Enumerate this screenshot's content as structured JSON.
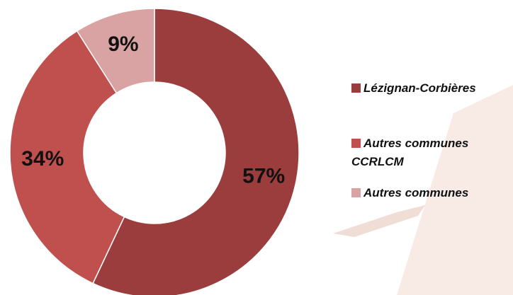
{
  "chart_data": {
    "type": "donut",
    "categories": [
      "Lézignan-Corbières",
      "Autres communes CCRLCM",
      "Autres communes"
    ],
    "values": [
      57,
      34,
      9
    ],
    "value_labels": [
      "57%",
      "34%",
      "9%"
    ],
    "colors": [
      "#9b3d3d",
      "#c0504d",
      "#d9a3a3"
    ],
    "legend": "right"
  }
}
